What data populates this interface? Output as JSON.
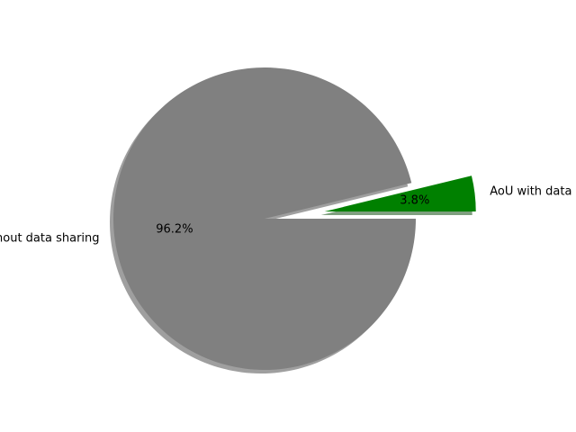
{
  "chart_data": {
    "type": "pie",
    "slices": [
      {
        "label": "AoU with data sharing",
        "percent_label": "3.8%",
        "value": 3.8,
        "color": "#008000",
        "exploded": true
      },
      {
        "label": "AoU without data sharing",
        "percent_label": "96.2%",
        "value": 96.2,
        "color": "#808080",
        "exploded": false
      }
    ],
    "shadow": true,
    "legend": "none",
    "start_angle": 0,
    "direction": "counterclockwise"
  }
}
